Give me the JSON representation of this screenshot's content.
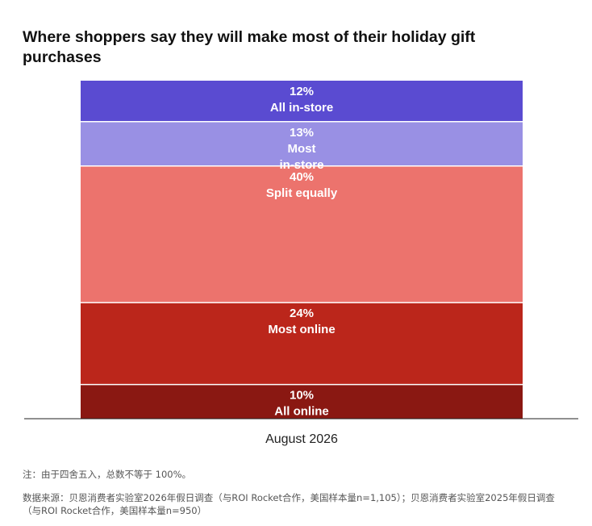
{
  "title": "Where shoppers say they will make most of their holiday gift purchases",
  "note": "注：由于四舍五入，总数不等于 100%。",
  "source_line1": "数据来源：贝恩消费者实验室2026年假日调查（与ROI Rocket合作，美国样本量n=1,105）；贝恩消费者实验室2025年假日调查",
  "source_line2": "（与ROI Rocket合作，美国样本量n=950）",
  "chart_data": {
    "type": "bar",
    "stacked": true,
    "categories": [
      "August 2026"
    ],
    "ylim": [
      0,
      99
    ],
    "series": [
      {
        "name": "All in-store",
        "values": [
          12
        ],
        "label": "12%",
        "label_lines": [
          "All in-store"
        ],
        "color": "#5a4bd1"
      },
      {
        "name": "Most in-store",
        "values": [
          13
        ],
        "label": "13%",
        "label_lines": [
          "Most",
          "in-store"
        ],
        "color": "#9990e4"
      },
      {
        "name": "Split equally",
        "values": [
          40
        ],
        "label": "40%",
        "label_lines": [
          "Split equally"
        ],
        "color": "#ec736d"
      },
      {
        "name": "Most online",
        "values": [
          24
        ],
        "label": "24%",
        "label_lines": [
          "Most online"
        ],
        "color": "#bb261b"
      },
      {
        "name": "All online",
        "values": [
          10
        ],
        "label": "10%",
        "label_lines": [
          "All online"
        ],
        "color": "#8a1812"
      }
    ]
  }
}
